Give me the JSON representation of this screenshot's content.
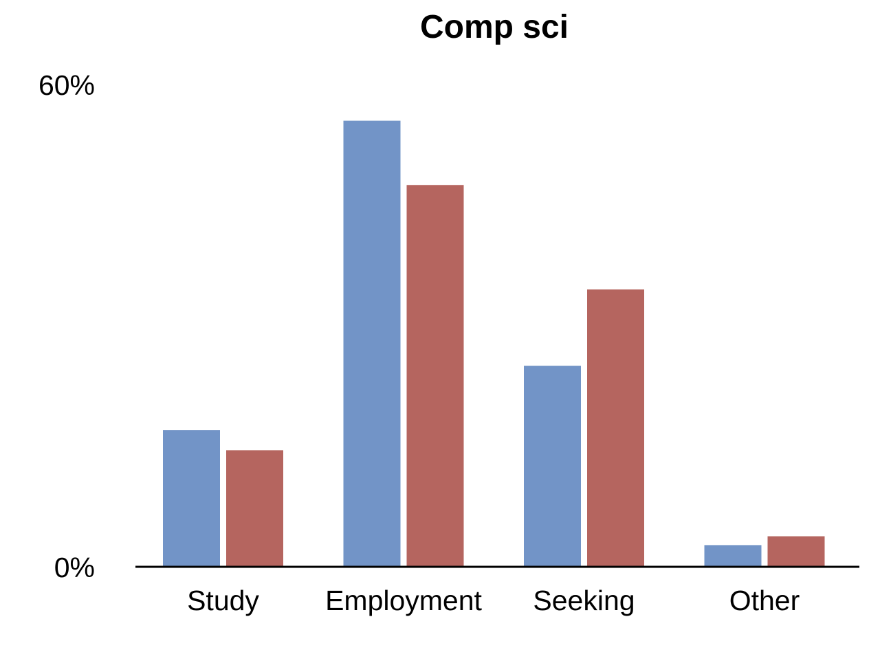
{
  "chart_data": {
    "type": "bar",
    "title": "Comp sci",
    "xlabel": "",
    "ylabel": "",
    "categories": [
      "Study",
      "Employment",
      "Seeking",
      "Other"
    ],
    "series": [
      {
        "color": "#7294c7",
        "values": [
          17,
          55.5,
          25,
          2.7
        ]
      },
      {
        "color": "#b5655f",
        "values": [
          14.5,
          47.5,
          34.5,
          3.8
        ]
      }
    ],
    "ylim": [
      0,
      60
    ],
    "y_ticks": [
      "0%",
      "60%"
    ],
    "grid": false,
    "legend": "none",
    "colors": {
      "axis": "#000000",
      "background": "#ffffff"
    }
  }
}
